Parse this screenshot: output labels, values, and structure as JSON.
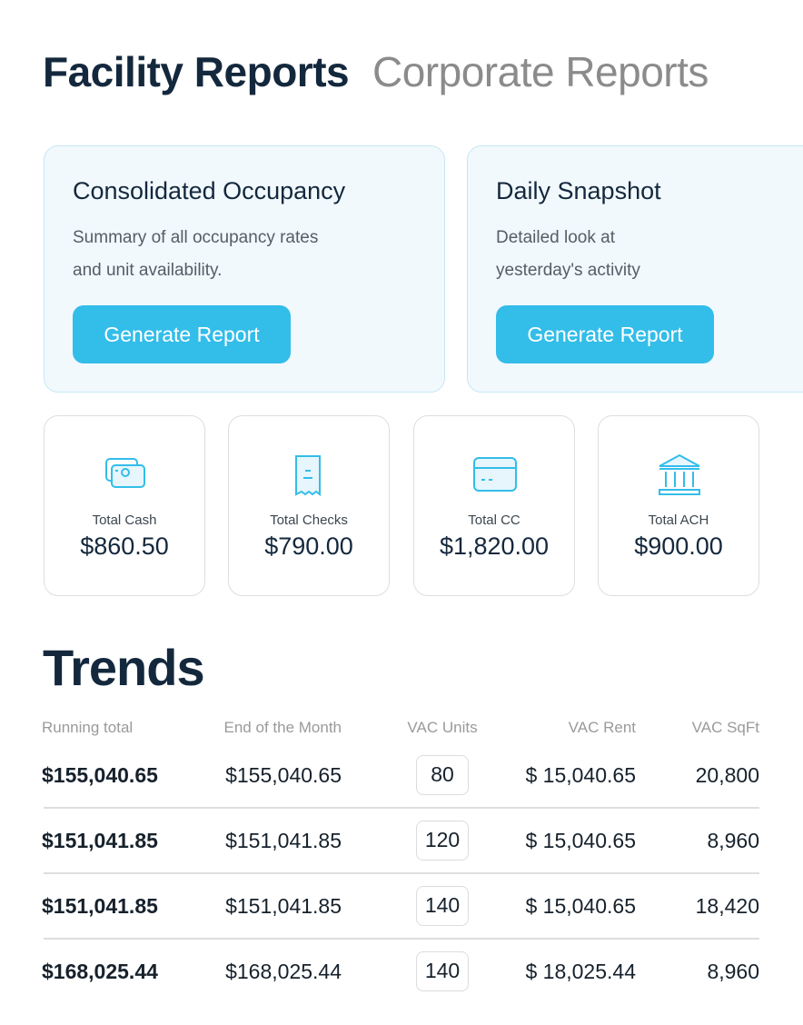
{
  "tabs": [
    "Facility Reports",
    "Corporate Reports"
  ],
  "active_tab": 0,
  "report_cards": [
    {
      "title": "Consolidated Occupancy",
      "description": [
        "Summary of all occupancy rates",
        "and unit availability."
      ],
      "button": "Generate Report"
    },
    {
      "title": "Daily Snapshot",
      "description": [
        "Detailed look at",
        "yesterday's activity"
      ],
      "button": "Generate Report"
    }
  ],
  "stats": [
    {
      "label": "Total Cash",
      "value": "$860.50"
    },
    {
      "label": "Total Checks",
      "value": "$790.00"
    },
    {
      "label": "Total CC",
      "value": "$1,820.00"
    },
    {
      "label": "Total ACH",
      "value": "$900.00"
    }
  ],
  "trends": {
    "title": "Trends",
    "columns": [
      "Running total",
      "End of the Month",
      "VAC Units",
      "VAC Rent",
      "VAC SqFt"
    ],
    "rows": [
      [
        "$155,040.65",
        "$155,040.65",
        "80",
        "$ 15,040.65",
        "20,800"
      ],
      [
        "$151,041.85",
        "$151,041.85",
        "120",
        "$ 15,040.65",
        "8,960"
      ],
      [
        "$151,041.85",
        "$151,041.85",
        "140",
        "$ 15,040.65",
        "18,420"
      ],
      [
        "$168,025.44",
        "$168,025.44",
        "140",
        "$ 18,025.44",
        "8,960"
      ]
    ]
  }
}
